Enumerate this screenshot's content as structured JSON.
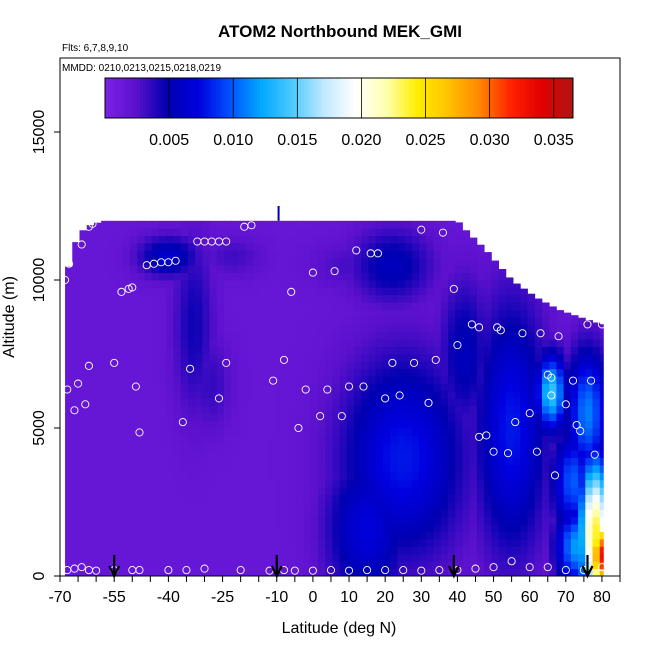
{
  "chart_data": {
    "type": "heatmap",
    "title": "ATOM2 Northbound MEK_GMI",
    "subtitle_flights": "Flts: 6,7,8,9,10",
    "subtitle_dates": "MMDD: 0210,0213,0215,0218,0219",
    "xlabel": "Latitude (deg N)",
    "ylabel": "Altitude (m)",
    "xlim": [
      -70,
      85
    ],
    "ylim": [
      0,
      17500
    ],
    "x_ticks": [
      "-70",
      "-55",
      "-40",
      "-25",
      "-10",
      "0",
      "10",
      "20",
      "30",
      "40",
      "50",
      "60",
      "70",
      "80"
    ],
    "x_tick_values": [
      -70,
      -55,
      -40,
      -25,
      -10,
      0,
      10,
      20,
      30,
      40,
      50,
      60,
      70,
      80
    ],
    "x_minor_ticks": [
      -65,
      -60,
      -50,
      -45,
      -35,
      -30,
      -20,
      -15,
      -5,
      5,
      15,
      25,
      35,
      45,
      55,
      65,
      75,
      85
    ],
    "y_ticks": [
      "0",
      "5000",
      "10000",
      "15000"
    ],
    "y_tick_values": [
      0,
      5000,
      10000,
      15000
    ],
    "colorbar": {
      "range": [
        0,
        0.0365
      ],
      "ticks": [
        "0.005",
        "0.010",
        "0.015",
        "0.020",
        "0.025",
        "0.030",
        "0.035"
      ],
      "tick_values": [
        0.005,
        0.01,
        0.015,
        0.02,
        0.025,
        0.03,
        0.035
      ],
      "colors": [
        "#7a22e6",
        "#5a10cc",
        "#0000b0",
        "#0000e0",
        "#0050ff",
        "#00a8ff",
        "#4ccaff",
        "#bfe8ff",
        "#ffffff",
        "#ffffb0",
        "#ffee00",
        "#ffc200",
        "#ff8800",
        "#ff2200",
        "#e00000",
        "#b01515"
      ]
    },
    "background_value": 0.0015,
    "envelope_top": [
      [
        -68.6,
        10000
      ],
      [
        -67.5,
        10500
      ],
      [
        -66,
        11200
      ],
      [
        -63,
        11800
      ],
      [
        -58,
        12000
      ],
      [
        -30,
        12000
      ],
      [
        -10,
        12000
      ],
      [
        0,
        12000
      ],
      [
        20,
        12000
      ],
      [
        40,
        12000
      ],
      [
        43,
        11600
      ],
      [
        48,
        11000
      ],
      [
        55,
        10000
      ],
      [
        62,
        9400
      ],
      [
        68,
        9000
      ],
      [
        75,
        8700
      ],
      [
        80,
        8500
      ]
    ],
    "x_extent": [
      -68.6,
      80.4
    ],
    "features": [
      {
        "x": -40,
        "y": 10800,
        "sx": 6,
        "sy": 500,
        "v": 0.0062
      },
      {
        "x": -22,
        "y": 10800,
        "sx": 6,
        "sy": 500,
        "v": 0.0032
      },
      {
        "x": -33,
        "y": 8500,
        "sx": 4,
        "sy": 2200,
        "v": 0.0045
      },
      {
        "x": -28,
        "y": 6500,
        "sx": 4,
        "sy": 1200,
        "v": 0.0035
      },
      {
        "x": 22,
        "y": 10500,
        "sx": 8,
        "sy": 900,
        "v": 0.0055
      },
      {
        "x": 10,
        "y": 10500,
        "sx": 8,
        "sy": 600,
        "v": 0.003
      },
      {
        "x": 25,
        "y": 4000,
        "sx": 12,
        "sy": 2400,
        "v": 0.008
      },
      {
        "x": 15,
        "y": 1600,
        "sx": 8,
        "sy": 1800,
        "v": 0.007
      },
      {
        "x": 42,
        "y": 7500,
        "sx": 5,
        "sy": 1800,
        "v": 0.0055
      },
      {
        "x": 55,
        "y": 5000,
        "sx": 7,
        "sy": 3000,
        "v": 0.008
      },
      {
        "x": 66,
        "y": 6200,
        "sx": 3,
        "sy": 900,
        "v": 0.014
      },
      {
        "x": 76,
        "y": 5500,
        "sx": 4,
        "sy": 1500,
        "v": 0.011
      },
      {
        "x": 73,
        "y": 1000,
        "sx": 4,
        "sy": 900,
        "v": 0.012
      },
      {
        "x": 78,
        "y": 1400,
        "sx": 3,
        "sy": 1800,
        "v": 0.024
      },
      {
        "x": 80,
        "y": 700,
        "sx": 2.5,
        "sy": 900,
        "v": 0.033
      },
      {
        "x": 72,
        "y": 3200,
        "sx": 4,
        "sy": 1200,
        "v": 0.01
      }
    ],
    "spike": {
      "x": -9.5,
      "y_from": 12000,
      "y_to": 12500
    },
    "points": [
      [
        -68.6,
        10000
      ],
      [
        -68,
        6300
      ],
      [
        -67.5,
        10550
      ],
      [
        -66,
        5600
      ],
      [
        -65,
        6500
      ],
      [
        -63,
        5800
      ],
      [
        -62,
        7100
      ],
      [
        -64,
        11200
      ],
      [
        -62,
        11800
      ],
      [
        -61,
        11900
      ],
      [
        -55,
        7200
      ],
      [
        -53,
        9600
      ],
      [
        -51,
        9700
      ],
      [
        -50,
        9750
      ],
      [
        -49,
        6400
      ],
      [
        -48,
        4850
      ],
      [
        -46,
        10500
      ],
      [
        -44,
        10550
      ],
      [
        -42,
        10600
      ],
      [
        -40,
        10600
      ],
      [
        -38,
        10650
      ],
      [
        -36,
        5200
      ],
      [
        -34,
        7000
      ],
      [
        -32,
        11300
      ],
      [
        -30,
        11300
      ],
      [
        -28,
        11300
      ],
      [
        -26,
        11300
      ],
      [
        -24,
        11300
      ],
      [
        -26,
        6000
      ],
      [
        -24,
        7200
      ],
      [
        -19,
        11800
      ],
      [
        -17,
        11850
      ],
      [
        -11,
        6600
      ],
      [
        -8,
        7300
      ],
      [
        -6,
        9600
      ],
      [
        -4,
        5000
      ],
      [
        -2,
        6300
      ],
      [
        0,
        10250
      ],
      [
        2,
        5400
      ],
      [
        4,
        6300
      ],
      [
        6,
        10300
      ],
      [
        8,
        5400
      ],
      [
        10,
        6400
      ],
      [
        12,
        11000
      ],
      [
        14,
        6400
      ],
      [
        16,
        10900
      ],
      [
        18,
        10900
      ],
      [
        20,
        6000
      ],
      [
        22,
        7200
      ],
      [
        24,
        6100
      ],
      [
        28,
        7200
      ],
      [
        30,
        11700
      ],
      [
        32,
        5850
      ],
      [
        34,
        7300
      ],
      [
        36,
        11600
      ],
      [
        39,
        9700
      ],
      [
        40,
        7800
      ],
      [
        44,
        8500
      ],
      [
        46,
        8400
      ],
      [
        46,
        4700
      ],
      [
        48,
        4750
      ],
      [
        50,
        4200
      ],
      [
        51,
        8400
      ],
      [
        52,
        8300
      ],
      [
        54,
        4150
      ],
      [
        56,
        5200
      ],
      [
        58,
        8200
      ],
      [
        60,
        5500
      ],
      [
        62,
        4200
      ],
      [
        63,
        8200
      ],
      [
        65,
        6800
      ],
      [
        66,
        6700
      ],
      [
        66,
        6100
      ],
      [
        67,
        3400
      ],
      [
        68,
        8100
      ],
      [
        70,
        5800
      ],
      [
        72,
        6600
      ],
      [
        73,
        5100
      ],
      [
        74,
        4900
      ],
      [
        76,
        8500
      ],
      [
        78,
        4100
      ],
      [
        77,
        6600
      ],
      [
        80,
        8500
      ],
      [
        -68,
        200
      ],
      [
        -66,
        250
      ],
      [
        -64,
        300
      ],
      [
        -62,
        200
      ],
      [
        -60,
        180
      ],
      [
        -55,
        200
      ],
      [
        -50,
        200
      ],
      [
        -48,
        200
      ],
      [
        -40,
        200
      ],
      [
        -35,
        200
      ],
      [
        -30,
        250
      ],
      [
        -20,
        200
      ],
      [
        -12,
        180
      ],
      [
        -8,
        200
      ],
      [
        -5,
        180
      ],
      [
        0,
        180
      ],
      [
        5,
        200
      ],
      [
        10,
        180
      ],
      [
        15,
        200
      ],
      [
        20,
        200
      ],
      [
        25,
        200
      ],
      [
        30,
        180
      ],
      [
        35,
        200
      ],
      [
        40,
        200
      ],
      [
        45,
        250
      ],
      [
        50,
        300
      ],
      [
        55,
        500
      ],
      [
        60,
        300
      ],
      [
        65,
        300
      ],
      [
        70,
        200
      ],
      [
        75,
        200
      ],
      [
        80,
        300
      ]
    ],
    "arrows_x": [
      -55,
      -10,
      39,
      76
    ]
  }
}
